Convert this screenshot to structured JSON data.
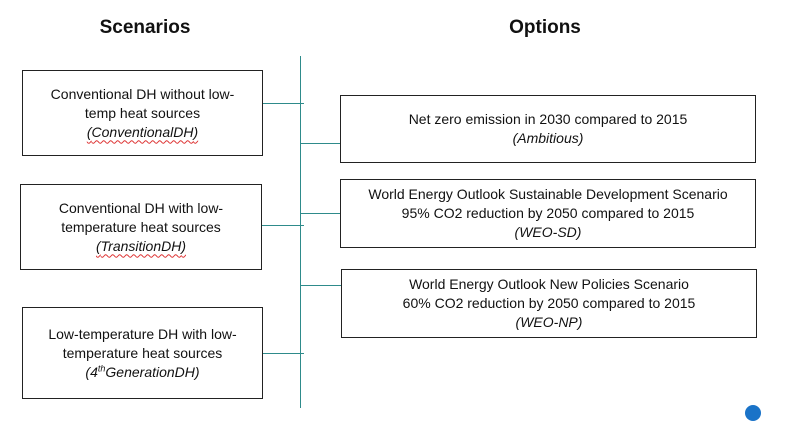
{
  "headings": {
    "scenarios": "Scenarios",
    "options": "Options"
  },
  "scenarios": [
    {
      "line1": "Conventional DH without low-",
      "line2": "temp heat sources",
      "code": "ConventionalDH"
    },
    {
      "line1": "Conventional DH with low-",
      "line2": "temperature heat sources",
      "code": "TransitionDH"
    },
    {
      "line1": "Low-temperature DH with low-",
      "line2": "temperature heat sources",
      "code_pre": "4",
      "code_sup": "th",
      "code_post": "GenerationDH"
    }
  ],
  "options": [
    {
      "line1": "Net zero emission in 2030 compared to 2015",
      "code": "(Ambitious)"
    },
    {
      "line1": "World Energy Outlook Sustainable Development Scenario",
      "line2": "95% CO2 reduction by 2050 compared to 2015",
      "code": "(WEO-SD)"
    },
    {
      "line1": "World Energy Outlook New Policies Scenario",
      "line2": "60% CO2 reduction by 2050 compared to 2015",
      "code": "(WEO-NP)"
    }
  ],
  "colors": {
    "connector": "#2e8b8b",
    "border": "#222222",
    "spellcheck_underline": "#d33333"
  }
}
